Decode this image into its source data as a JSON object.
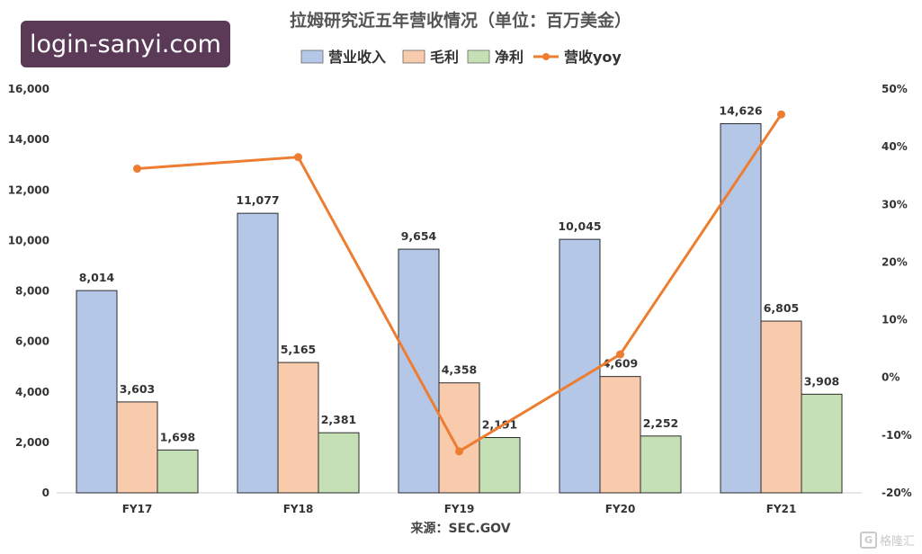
{
  "badge": {
    "text": "login-sanyi.com"
  },
  "watermark": {
    "mark": "G",
    "text": "格隆汇"
  },
  "chart_data": {
    "type": "bar",
    "title": "拉姆研究近五年营收情况（单位：百万美金）",
    "source": "来源：SEC.GOV",
    "categories": [
      "FY17",
      "FY18",
      "FY19",
      "FY20",
      "FY21"
    ],
    "series": [
      {
        "name": "营业收入",
        "type": "bar",
        "axis": "left",
        "color": "#b4c7e7",
        "stroke": "#2b2b2b",
        "values": [
          8014,
          11077,
          9654,
          10045,
          14626
        ],
        "labels": [
          "8,014",
          "11,077",
          "9,654",
          "10,045",
          "14,626"
        ]
      },
      {
        "name": "毛利",
        "type": "bar",
        "axis": "left",
        "color": "#f8cbad",
        "stroke": "#2b2b2b",
        "values": [
          3603,
          5165,
          4358,
          4609,
          6805
        ],
        "labels": [
          "3,603",
          "5,165",
          "4,358",
          "4,609",
          "6,805"
        ]
      },
      {
        "name": "净利",
        "type": "bar",
        "axis": "left",
        "color": "#c5e0b4",
        "stroke": "#2b2b2b",
        "values": [
          1698,
          2381,
          2191,
          2252,
          3908
        ],
        "labels": [
          "1,698",
          "2,381",
          "2,191",
          "2,252",
          "3,908"
        ]
      },
      {
        "name": "营收yoy",
        "type": "line",
        "axis": "right",
        "color": "#ed7d31",
        "values": [
          36.2,
          38.2,
          -12.8,
          4.0,
          45.6
        ]
      }
    ],
    "yaxis_left": {
      "ylim": [
        0,
        16000
      ],
      "ticks": [
        0,
        2000,
        4000,
        6000,
        8000,
        10000,
        12000,
        14000,
        16000
      ],
      "tick_labels": [
        "0",
        "2,000",
        "4,000",
        "6,000",
        "8,000",
        "10,000",
        "12,000",
        "14,000",
        "16,000"
      ]
    },
    "yaxis_right": {
      "ylim": [
        -20,
        50
      ],
      "ticks": [
        -20,
        -10,
        0,
        10,
        20,
        30,
        40,
        50
      ],
      "tick_labels": [
        "-20%",
        "-10%",
        "0%",
        "10%",
        "20%",
        "30%",
        "40%",
        "50%"
      ]
    },
    "grid": false,
    "legend": "top-center"
  }
}
